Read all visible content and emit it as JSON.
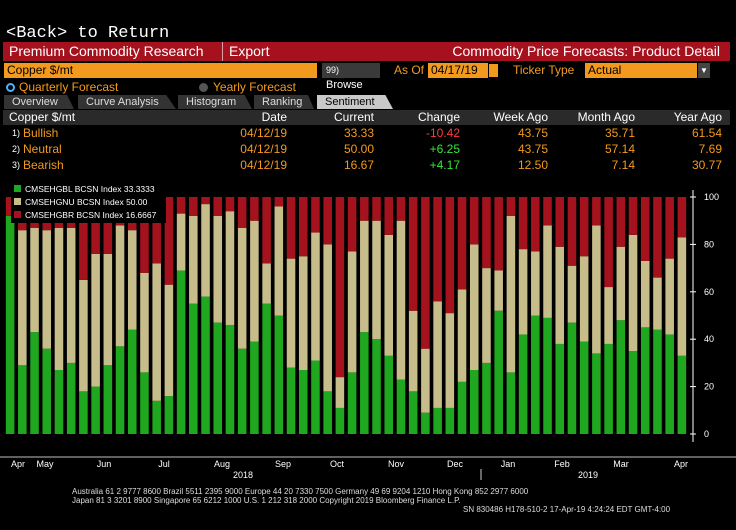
{
  "nav": {
    "back_label": "<Back> to Return"
  },
  "header": {
    "app_title": "Premium Commodity Research",
    "export_label": "Export",
    "page_title": "Commodity Price Forecasts: Product Detail"
  },
  "controls": {
    "commodity_value": "Copper $/mt",
    "browse_num": "99)",
    "browse_label": "Browse",
    "as_of_label": "As Of",
    "as_of_value": "04/17/19",
    "ticker_type_label": "Ticker Type",
    "ticker_type_value": "Actual",
    "quarterly_label": "Quarterly Forecast",
    "yearly_label": "Yearly Forecast"
  },
  "tabs": [
    {
      "label": "Overview"
    },
    {
      "label": "Curve Analysis"
    },
    {
      "label": "Histogram"
    },
    {
      "label": "Ranking"
    },
    {
      "label": "Sentiment"
    }
  ],
  "table": {
    "headers": [
      "Copper $/mt",
      "Date",
      "Current",
      "Change",
      "Week Ago",
      "Month Ago",
      "Year Ago"
    ],
    "rows": [
      {
        "num": "1)",
        "name": "Bullish",
        "date": "04/12/19",
        "current": "33.33",
        "change": "-10.42",
        "week": "43.75",
        "month": "35.71",
        "year": "61.54"
      },
      {
        "num": "2)",
        "name": "Neutral",
        "date": "04/12/19",
        "current": "50.00",
        "change": "+6.25",
        "week": "43.75",
        "month": "57.14",
        "year": "7.69"
      },
      {
        "num": "3)",
        "name": "Bearish",
        "date": "04/12/19",
        "current": "16.67",
        "change": "+4.17",
        "week": "12.50",
        "month": "7.14",
        "year": "30.77"
      }
    ]
  },
  "colors": {
    "accent_orange": "#f39a1e",
    "brand_red": "#a5121e",
    "bullish_green": "#1fa81f",
    "neutral_tan": "#c7bd8a",
    "bearish_red": "#a3121d"
  },
  "chart_data": {
    "type": "bar",
    "stacked": true,
    "legend": [
      {
        "label": "CMSEHGBL BCSN Index 33.3333"
      },
      {
        "label": "CMSEHGNU BCSN Index 50.00"
      },
      {
        "label": "CMSEHGBR BCSN Index 16.6667"
      }
    ],
    "ylim": [
      0,
      100
    ],
    "yticks": [
      "0",
      "20",
      "40",
      "60",
      "80",
      "100"
    ],
    "month_labels": [
      "Apr",
      "May",
      "Jun",
      "Jul",
      "Aug",
      "Sep",
      "Oct",
      "Nov",
      "Dec",
      "Jan",
      "Feb",
      "Mar",
      "Apr"
    ],
    "year_labels": [
      "2018",
      "2019"
    ],
    "bullish": [
      92,
      29,
      43,
      36,
      27,
      30,
      18,
      20,
      29,
      37,
      44,
      26,
      14,
      16,
      69,
      55,
      58,
      47,
      46,
      36,
      39,
      55,
      50,
      28,
      27,
      31,
      18,
      11,
      26,
      43,
      40,
      33,
      23,
      18,
      9,
      11,
      11,
      22,
      27,
      30,
      52,
      26,
      42,
      50,
      49,
      38,
      47,
      39,
      34,
      38,
      48,
      35,
      45,
      44,
      42,
      33
    ],
    "neutral": [
      0,
      57,
      44,
      50,
      60,
      57,
      47,
      56,
      47,
      51,
      42,
      42,
      58,
      47,
      24,
      37,
      39,
      45,
      48,
      51,
      51,
      17,
      46,
      46,
      48,
      54,
      62,
      13,
      51,
      47,
      50,
      51,
      67,
      34,
      27,
      45,
      40,
      39,
      53,
      40,
      17,
      66,
      36,
      27,
      39,
      41,
      24,
      36,
      54,
      24,
      31,
      49,
      28,
      22,
      32,
      50
    ],
    "bearish": [
      8,
      14,
      13,
      14,
      13,
      13,
      35,
      24,
      24,
      12,
      14,
      32,
      28,
      37,
      7,
      8,
      3,
      8,
      6,
      13,
      10,
      28,
      4,
      26,
      25,
      15,
      20,
      76,
      23,
      10,
      10,
      16,
      10,
      48,
      64,
      44,
      49,
      39,
      20,
      30,
      31,
      8,
      22,
      23,
      12,
      21,
      29,
      25,
      12,
      38,
      21,
      16,
      27,
      34,
      26,
      17
    ]
  },
  "footer": {
    "line1": "Australia 61 2 9777 8600 Brazil 5511 2395 9000 Europe 44 20 7330 7500 Germany 49 69 9204 1210 Hong Kong 852 2977 6000",
    "line2": "Japan 81 3 3201 8900         Singapore 65 6212 1000         U.S. 1 212 318 2000         Copyright 2019 Bloomberg Finance L.P.",
    "line3": "SN 830486 H178-510-2 17-Apr-19  4:24:24 EDT  GMT-4:00"
  }
}
